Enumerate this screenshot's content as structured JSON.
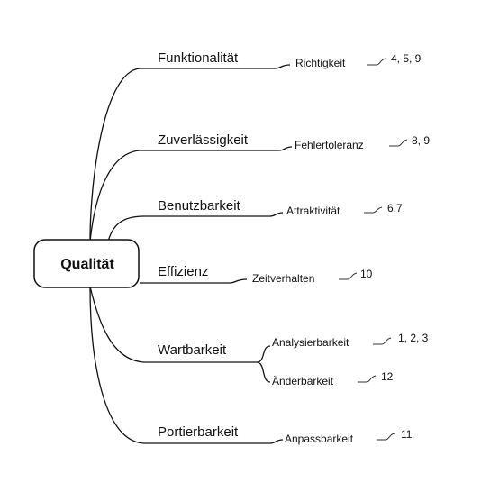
{
  "root": {
    "label": "Qualität"
  },
  "branches": [
    {
      "label": "Funktionalität",
      "children": [
        {
          "label": "Richtigkeit",
          "note": "4, 5, 9"
        }
      ]
    },
    {
      "label": "Zuverlässigkeit",
      "children": [
        {
          "label": "Fehlertoleranz",
          "note": "8, 9"
        }
      ]
    },
    {
      "label": "Benutzbarkeit",
      "children": [
        {
          "label": "Attraktivität",
          "note": "6,7"
        }
      ]
    },
    {
      "label": "Effizienz",
      "children": [
        {
          "label": "Zeitverhalten",
          "note": "10"
        }
      ]
    },
    {
      "label": "Wartbarkeit",
      "children": [
        {
          "label": "Analysierbarkeit",
          "note": "1, 2, 3"
        },
        {
          "label": "Änderbarkeit",
          "note": "12"
        }
      ]
    },
    {
      "label": "Portierbarkeit",
      "children": [
        {
          "label": "Anpassbarkeit",
          "note": "11"
        }
      ]
    }
  ]
}
